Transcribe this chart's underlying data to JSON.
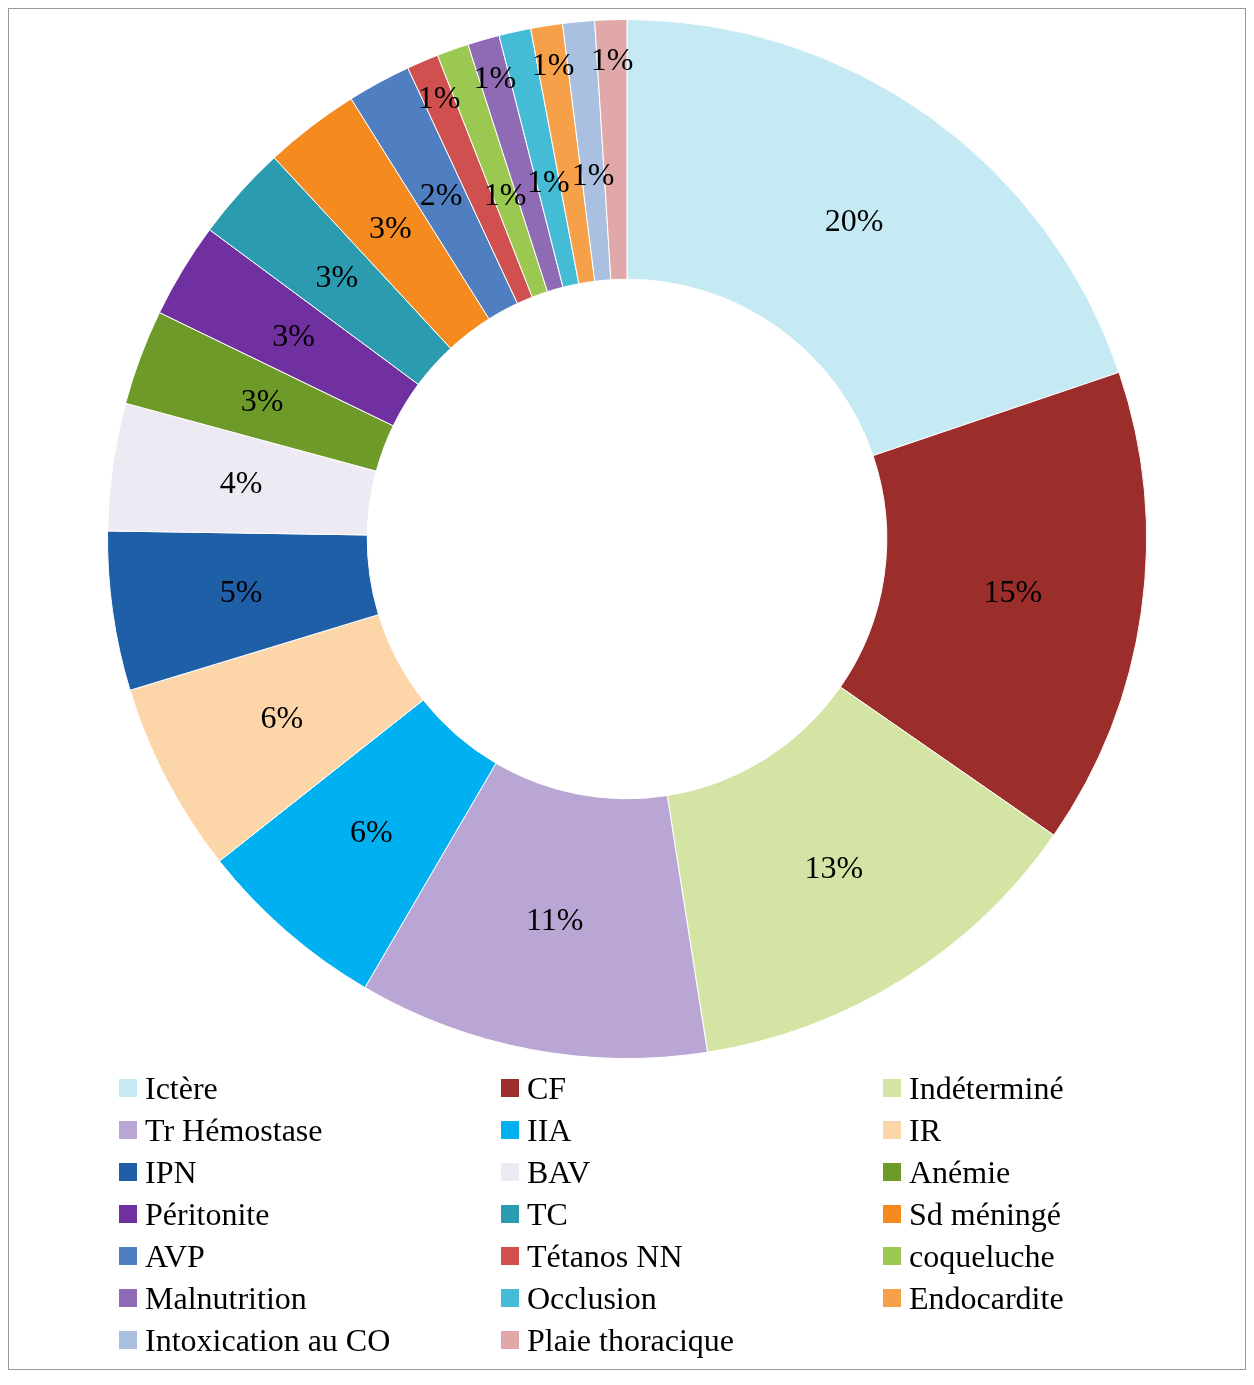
{
  "chart_data": {
    "type": "donut",
    "categories": [
      "Ictère",
      "CF",
      "Indéterminé",
      "Tr Hémostase",
      "IIA",
      "IR",
      "IPN",
      "BAV",
      "Anémie",
      "Péritonite",
      "TC",
      "Sd méningé",
      "AVP",
      "Tétanos NN",
      "coqueluche",
      "Malnutrition",
      "Occlusion",
      "Endocardite",
      "Intoxication au CO",
      "Plaie thoracique"
    ],
    "values": [
      20,
      15,
      13,
      11,
      6,
      6,
      5,
      4,
      3,
      3,
      3,
      3,
      2,
      1,
      1,
      1,
      1,
      1,
      1,
      1
    ],
    "colors": [
      "#c5eaf3",
      "#9b2d2a",
      "#d4e4a4",
      "#b9a6d4",
      "#00b0f0",
      "#fcd5a8",
      "#1f5fa8",
      "#eeeaf3",
      "#6d9a28",
      "#7030a0",
      "#2b9bb0",
      "#f58a1f",
      "#4f7fc0",
      "#d05050",
      "#9bc850",
      "#8f6bb5",
      "#45bcd6",
      "#f7a04a",
      "#a9c0e0",
      "#e0a8a8"
    ],
    "value_labels": [
      "20%",
      "15%",
      "13%",
      "11%",
      "6%",
      "6%",
      "5%",
      "4%",
      "3%",
      "3%",
      "3%",
      "3%",
      "2%",
      "1%",
      "1%",
      "1%",
      "1%",
      "1%",
      "1%",
      "1%"
    ],
    "legend": "bottom"
  }
}
